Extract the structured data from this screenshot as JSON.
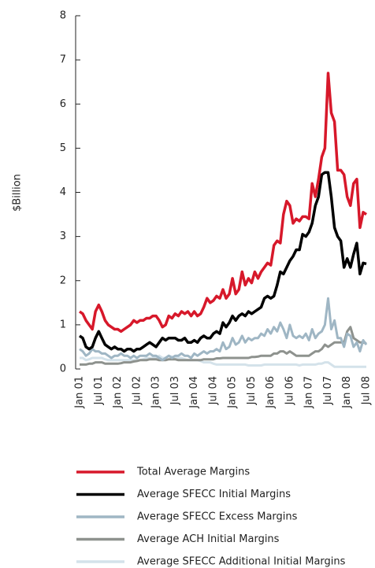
{
  "chart_data": {
    "type": "line",
    "y_label": "$Billion",
    "categories": [
      "Jan 01",
      null,
      null,
      null,
      null,
      null,
      "Jul 01",
      null,
      null,
      null,
      null,
      null,
      "Jan 02",
      null,
      null,
      null,
      null,
      null,
      "Jul 02",
      null,
      null,
      null,
      null,
      null,
      "Jan 03",
      null,
      null,
      null,
      null,
      null,
      "Jul 03",
      null,
      null,
      null,
      null,
      null,
      "Jan 04",
      null,
      null,
      null,
      null,
      null,
      "Jul 04",
      null,
      null,
      null,
      null,
      null,
      "Jan 05",
      null,
      null,
      null,
      null,
      null,
      "Jul 05",
      null,
      null,
      null,
      null,
      null,
      "Jan 06",
      null,
      null,
      null,
      null,
      null,
      "Jul 06",
      null,
      null,
      null,
      null,
      null,
      "Jan 07",
      null,
      null,
      null,
      null,
      null,
      "Jul 07",
      null,
      null,
      null,
      null,
      null,
      "Jan 08",
      null,
      null,
      null,
      null,
      null,
      "Jul 08"
    ],
    "ylim": [
      0,
      8
    ],
    "yticks": [
      0,
      1,
      2,
      3,
      4,
      5,
      6,
      7,
      8
    ],
    "series": [
      {
        "name": "Total Average Margins",
        "color": "#d7182a",
        "values": [
          1.3,
          1.25,
          1.1,
          1.0,
          0.9,
          1.3,
          1.45,
          1.3,
          1.1,
          1.0,
          0.95,
          0.9,
          0.9,
          0.85,
          0.9,
          0.95,
          1.0,
          1.1,
          1.05,
          1.1,
          1.1,
          1.15,
          1.15,
          1.2,
          1.2,
          1.1,
          0.95,
          1.0,
          1.2,
          1.15,
          1.25,
          1.2,
          1.3,
          1.25,
          1.3,
          1.2,
          1.3,
          1.2,
          1.25,
          1.4,
          1.6,
          1.5,
          1.55,
          1.65,
          1.6,
          1.8,
          1.6,
          1.7,
          2.05,
          1.7,
          1.8,
          2.2,
          1.9,
          2.05,
          1.95,
          2.2,
          2.05,
          2.2,
          2.3,
          2.4,
          2.35,
          2.8,
          2.9,
          2.85,
          3.5,
          3.8,
          3.7,
          3.3,
          3.4,
          3.35,
          3.45,
          3.45,
          3.4,
          4.2,
          3.9,
          4.3,
          4.8,
          5.0,
          6.7,
          5.8,
          5.6,
          4.5,
          4.5,
          4.4,
          3.9,
          3.7,
          4.2,
          4.3,
          3.2,
          3.55,
          3.5
        ]
      },
      {
        "name": "Average SFECC Initial Margins",
        "color": "#000000",
        "values": [
          0.75,
          0.7,
          0.5,
          0.45,
          0.5,
          0.7,
          0.85,
          0.7,
          0.55,
          0.5,
          0.45,
          0.5,
          0.45,
          0.45,
          0.4,
          0.45,
          0.45,
          0.4,
          0.45,
          0.45,
          0.5,
          0.55,
          0.6,
          0.55,
          0.5,
          0.6,
          0.7,
          0.65,
          0.7,
          0.7,
          0.7,
          0.65,
          0.65,
          0.7,
          0.6,
          0.6,
          0.65,
          0.6,
          0.7,
          0.75,
          0.7,
          0.7,
          0.8,
          0.85,
          0.8,
          1.05,
          0.95,
          1.05,
          1.2,
          1.1,
          1.2,
          1.25,
          1.2,
          1.3,
          1.25,
          1.3,
          1.35,
          1.4,
          1.6,
          1.65,
          1.6,
          1.65,
          1.9,
          2.2,
          2.15,
          2.3,
          2.45,
          2.55,
          2.7,
          2.7,
          3.05,
          3.0,
          3.1,
          3.3,
          3.7,
          3.9,
          4.4,
          4.45,
          4.45,
          3.9,
          3.2,
          3.0,
          2.9,
          2.3,
          2.5,
          2.3,
          2.6,
          2.85,
          2.15,
          2.4,
          2.38
        ]
      },
      {
        "name": "Average SFECC Excess Margins",
        "color": "#9fb6c4",
        "values": [
          0.45,
          0.4,
          0.3,
          0.35,
          0.45,
          0.4,
          0.4,
          0.35,
          0.35,
          0.3,
          0.25,
          0.3,
          0.3,
          0.35,
          0.3,
          0.3,
          0.25,
          0.3,
          0.25,
          0.3,
          0.3,
          0.3,
          0.35,
          0.3,
          0.3,
          0.25,
          0.2,
          0.25,
          0.3,
          0.25,
          0.3,
          0.3,
          0.35,
          0.3,
          0.3,
          0.25,
          0.35,
          0.3,
          0.35,
          0.4,
          0.35,
          0.4,
          0.4,
          0.45,
          0.4,
          0.6,
          0.45,
          0.5,
          0.7,
          0.55,
          0.6,
          0.75,
          0.6,
          0.7,
          0.65,
          0.7,
          0.7,
          0.8,
          0.75,
          0.9,
          0.8,
          0.95,
          0.85,
          1.05,
          0.9,
          0.7,
          1.0,
          0.75,
          0.7,
          0.75,
          0.7,
          0.8,
          0.65,
          0.9,
          0.7,
          0.8,
          0.85,
          1.0,
          1.6,
          0.9,
          1.1,
          0.7,
          0.7,
          0.5,
          0.8,
          0.75,
          0.5,
          0.6,
          0.4,
          0.65,
          0.55
        ]
      },
      {
        "name": "Average ACH Initial Margins",
        "color": "#8e928e",
        "values": [
          0.1,
          0.1,
          0.1,
          0.12,
          0.12,
          0.15,
          0.15,
          0.15,
          0.12,
          0.12,
          0.12,
          0.12,
          0.12,
          0.13,
          0.15,
          0.15,
          0.15,
          0.17,
          0.18,
          0.2,
          0.2,
          0.2,
          0.22,
          0.22,
          0.22,
          0.2,
          0.2,
          0.2,
          0.22,
          0.22,
          0.22,
          0.2,
          0.2,
          0.2,
          0.2,
          0.2,
          0.2,
          0.2,
          0.2,
          0.22,
          0.22,
          0.22,
          0.22,
          0.24,
          0.24,
          0.25,
          0.25,
          0.25,
          0.25,
          0.25,
          0.25,
          0.25,
          0.25,
          0.25,
          0.27,
          0.27,
          0.28,
          0.3,
          0.3,
          0.3,
          0.3,
          0.35,
          0.35,
          0.4,
          0.4,
          0.35,
          0.4,
          0.35,
          0.3,
          0.3,
          0.3,
          0.3,
          0.3,
          0.35,
          0.4,
          0.4,
          0.45,
          0.55,
          0.5,
          0.55,
          0.6,
          0.6,
          0.6,
          0.6,
          0.85,
          0.95,
          0.7,
          0.65,
          0.6,
          0.6,
          0.58
        ]
      },
      {
        "name": "Average SFECC Additional Initial Margins",
        "color": "#d4e2ea",
        "values": [
          0.25,
          0.25,
          0.2,
          0.22,
          0.25,
          0.25,
          0.25,
          0.25,
          0.22,
          0.2,
          0.2,
          0.2,
          0.2,
          0.2,
          0.2,
          0.2,
          0.2,
          0.2,
          0.2,
          0.2,
          0.22,
          0.25,
          0.25,
          0.25,
          0.25,
          0.3,
          0.25,
          0.25,
          0.3,
          0.28,
          0.25,
          0.25,
          0.25,
          0.22,
          0.2,
          0.2,
          0.2,
          0.2,
          0.18,
          0.15,
          0.15,
          0.15,
          0.12,
          0.1,
          0.1,
          0.1,
          0.1,
          0.1,
          0.1,
          0.1,
          0.1,
          0.1,
          0.1,
          0.08,
          0.08,
          0.08,
          0.08,
          0.08,
          0.1,
          0.1,
          0.1,
          0.1,
          0.1,
          0.1,
          0.1,
          0.1,
          0.1,
          0.1,
          0.1,
          0.08,
          0.1,
          0.1,
          0.1,
          0.1,
          0.1,
          0.12,
          0.12,
          0.15,
          0.15,
          0.1,
          0.05,
          0.05,
          0.05,
          0.05,
          0.05,
          0.05,
          0.05,
          0.05,
          0.05,
          0.05,
          0.05
        ]
      }
    ]
  }
}
